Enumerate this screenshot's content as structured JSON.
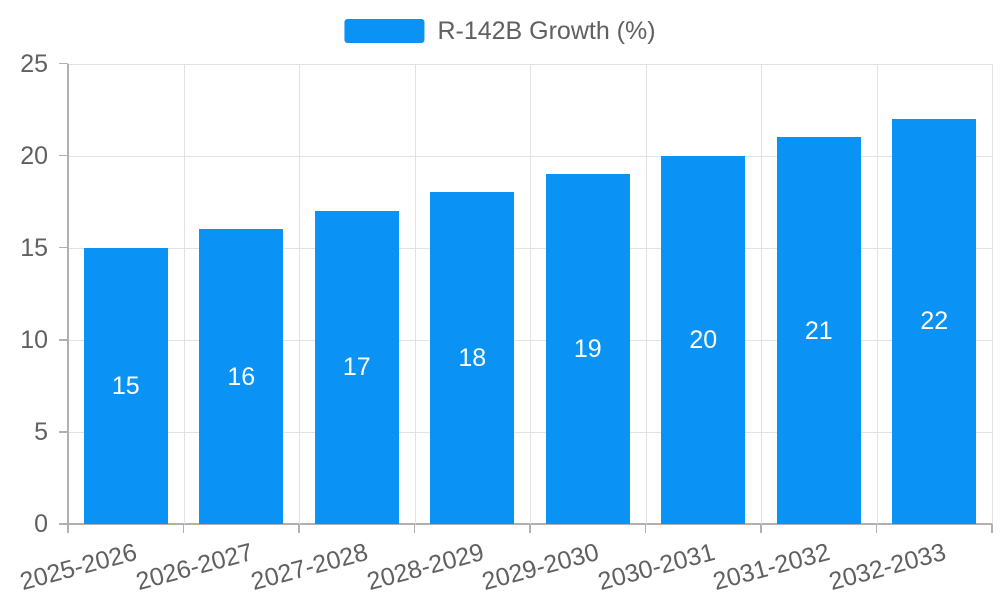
{
  "chart_data": {
    "type": "bar",
    "title": "",
    "legend": "R-142B Growth (%)",
    "categories": [
      "2025-2026",
      "2026-2027",
      "2027-2028",
      "2028-2029",
      "2029-2030",
      "2030-2031",
      "2031-2032",
      "2032-2033"
    ],
    "values": [
      15,
      16,
      17,
      18,
      19,
      20,
      21,
      22
    ],
    "series": [
      {
        "name": "R-142B Growth (%)",
        "values": [
          15,
          16,
          17,
          18,
          19,
          20,
          21,
          22
        ]
      }
    ],
    "xlabel": "",
    "ylabel": "",
    "ylim": [
      0,
      25
    ],
    "yticks": [
      0,
      5,
      10,
      15,
      20,
      25
    ],
    "grid": "on",
    "legend_position": "top-center",
    "x_label_rotation_deg": 15,
    "value_labels": "inside-center",
    "colors": {
      "bar": "#0A92F5",
      "bar_value_text": "#ffffff",
      "grid": "#e2e2e2",
      "axis": "#b0b0b0",
      "tick_text": "#606060",
      "legend_text": "#606060",
      "background": "#ffffff"
    }
  }
}
